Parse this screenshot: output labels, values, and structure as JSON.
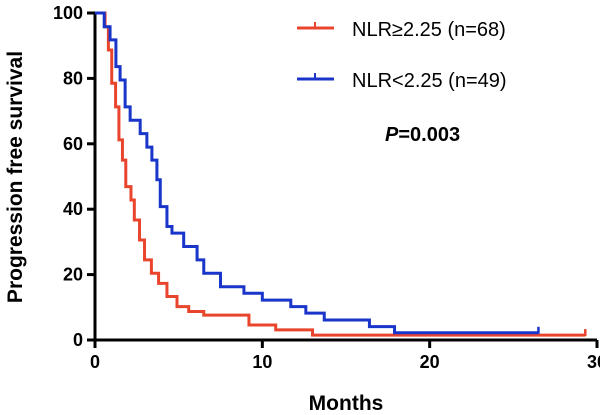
{
  "chart_data": {
    "type": "line",
    "subtype": "kaplan-meier step",
    "xlabel": "Months",
    "ylabel": "Progression free survival",
    "xlim": [
      0,
      30
    ],
    "ylim": [
      0,
      100
    ],
    "xticks": [
      0,
      10,
      20,
      30
    ],
    "yticks": [
      0,
      20,
      40,
      60,
      80,
      100
    ],
    "grid": false,
    "legend_placement": "top-right",
    "annotation": {
      "italic": "P",
      "rest": "=0.003"
    },
    "series": [
      {
        "name": "NLR≥2.25 (n=68)",
        "color": "#e8452c",
        "steps": [
          [
            0,
            100
          ],
          [
            0.5,
            100
          ],
          [
            0.6,
            95.8
          ],
          [
            0.8,
            88.7
          ],
          [
            1.0,
            78.5
          ],
          [
            1.23,
            71.3
          ],
          [
            1.43,
            61.2
          ],
          [
            1.64,
            55
          ],
          [
            1.84,
            46.9
          ],
          [
            2.15,
            42.8
          ],
          [
            2.35,
            36.7
          ],
          [
            2.66,
            30.6
          ],
          [
            2.96,
            24.5
          ],
          [
            3.37,
            20.4
          ],
          [
            3.8,
            17.3
          ],
          [
            4.3,
            13.3
          ],
          [
            4.9,
            10.2
          ],
          [
            5.6,
            8.7
          ],
          [
            6.5,
            7.6
          ],
          [
            9.2,
            4.6
          ],
          [
            10.8,
            3.1
          ],
          [
            13.0,
            1.5
          ],
          [
            29.3,
            1.5
          ]
        ],
        "censored": [
          29.3
        ]
      },
      {
        "name": "NLR<2.25 (n=49)",
        "color": "#1a35c9",
        "steps": [
          [
            0,
            100
          ],
          [
            0.55,
            95.8
          ],
          [
            0.9,
            91.8
          ],
          [
            1.25,
            83.6
          ],
          [
            1.5,
            79.5
          ],
          [
            1.8,
            71.3
          ],
          [
            2.1,
            67.2
          ],
          [
            2.7,
            63.1
          ],
          [
            3.1,
            59
          ],
          [
            3.4,
            55
          ],
          [
            3.7,
            49
          ],
          [
            3.9,
            40.8
          ],
          [
            4.3,
            34.7
          ],
          [
            4.6,
            32.7
          ],
          [
            5.3,
            28.6
          ],
          [
            6.1,
            24.5
          ],
          [
            6.5,
            20.4
          ],
          [
            7.5,
            16.3
          ],
          [
            8.9,
            14.3
          ],
          [
            10.0,
            12.2
          ],
          [
            11.7,
            10.2
          ],
          [
            12.6,
            8.2
          ],
          [
            13.7,
            6.1
          ],
          [
            16.4,
            4.1
          ],
          [
            17.9,
            2.2
          ],
          [
            26.5,
            2.2
          ]
        ],
        "censored": [
          26.5
        ]
      }
    ]
  }
}
